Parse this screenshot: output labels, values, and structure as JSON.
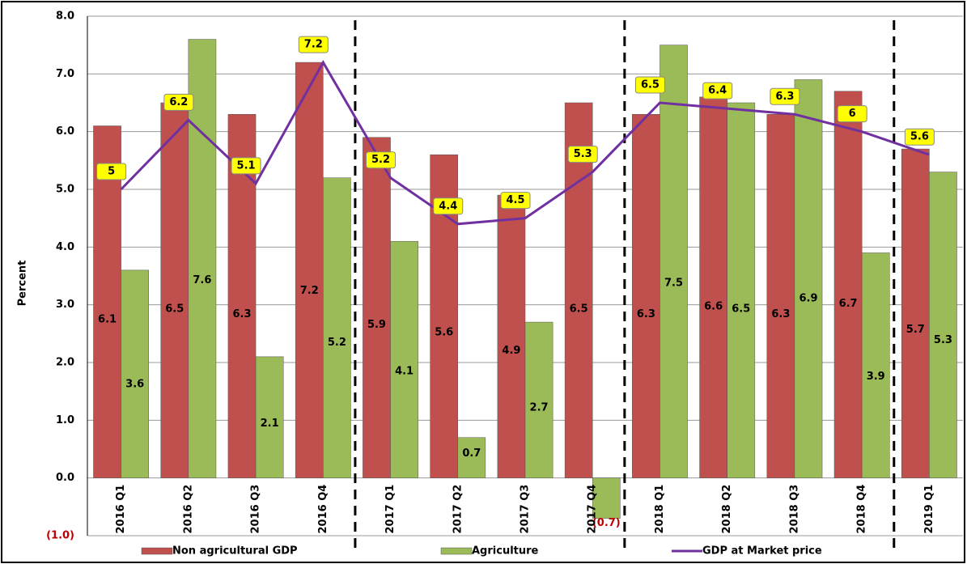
{
  "chart_data": {
    "type": "bar-line",
    "y_label": "Percent",
    "categories": [
      "2016 Q1",
      "2016 Q2",
      "2016 Q3",
      "2016 Q4",
      "2017 Q1",
      "2017 Q2",
      "2017 Q3",
      "2017 Q4",
      "2018 Q1",
      "2018 Q2",
      "2018 Q3",
      "2018 Q4",
      "2019 Q1"
    ],
    "series": [
      {
        "name": "Non agricultural GDP",
        "kind": "bar",
        "color": "#c0504d",
        "values": [
          6.1,
          6.5,
          6.3,
          7.2,
          5.9,
          5.6,
          4.9,
          6.5,
          6.3,
          6.6,
          6.3,
          6.7,
          5.7
        ]
      },
      {
        "name": "Agriculture",
        "kind": "bar",
        "color": "#9bbb59",
        "values": [
          3.6,
          7.6,
          2.1,
          5.2,
          4.1,
          0.7,
          2.7,
          -0.7,
          7.5,
          6.5,
          6.9,
          3.9,
          5.3
        ],
        "value_labels": [
          "3.6",
          "7.6",
          "2.1",
          "5.2",
          "4.1",
          "0.7",
          "2.7",
          "(0.7)",
          "7.5",
          "6.5",
          "6.9",
          "3.9",
          "5.3"
        ]
      },
      {
        "name": "GDP at Market price",
        "kind": "line",
        "color": "#7030a0",
        "values": [
          5.0,
          6.2,
          5.1,
          7.2,
          5.2,
          4.4,
          4.5,
          5.3,
          6.5,
          6.4,
          6.3,
          6.0,
          5.6
        ]
      }
    ],
    "ylim": [
      -1,
      8
    ],
    "yticks": [
      {
        "value": -1,
        "label": "(1.0)"
      },
      {
        "value": 0,
        "label": "0.0"
      },
      {
        "value": 1,
        "label": "1.0"
      },
      {
        "value": 2,
        "label": "2.0"
      },
      {
        "value": 3,
        "label": "3.0"
      },
      {
        "value": 4,
        "label": "4.0"
      },
      {
        "value": 5,
        "label": "5.0"
      },
      {
        "value": 6,
        "label": "6.0"
      },
      {
        "value": 7,
        "label": "7.0"
      },
      {
        "value": 8,
        "label": "8.0"
      }
    ],
    "grid": true
  }
}
